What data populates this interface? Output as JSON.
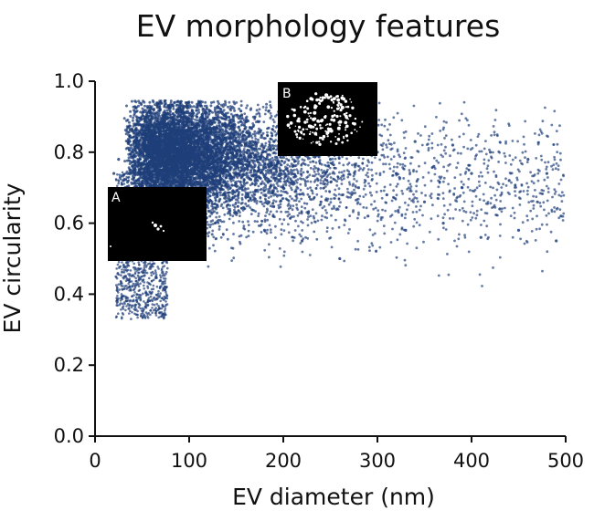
{
  "chart_data": {
    "type": "scatter",
    "title": "EV morphology features",
    "xlabel": "EV diameter (nm)",
    "ylabel": "EV circularity",
    "xlim": [
      0,
      500
    ],
    "ylim": [
      0.0,
      1.0
    ],
    "xticks": [
      "0",
      "100",
      "200",
      "300",
      "400",
      "500"
    ],
    "yticks": [
      "0.0",
      "0.2",
      "0.4",
      "0.6",
      "0.8",
      "1.0"
    ],
    "grid": false,
    "legend": "none",
    "point_color": "#1f3f7a",
    "series": [
      {
        "x": [
          20,
          25,
          30,
          35,
          40,
          45,
          50,
          55,
          60,
          65,
          70,
          75,
          80,
          85,
          90,
          95,
          100,
          110,
          120,
          130,
          140,
          150,
          160,
          170,
          180,
          190,
          200,
          210,
          220,
          230,
          240,
          250,
          260,
          270,
          280,
          290,
          300,
          310,
          320,
          330,
          340,
          350,
          360,
          370,
          380,
          390,
          400,
          410,
          420,
          430,
          440,
          450,
          460,
          470,
          480,
          490,
          495
        ],
        "y": [
          0.74,
          0.78,
          0.72,
          0.44,
          0.5,
          0.62,
          0.82,
          0.68,
          0.79,
          0.8,
          0.76,
          0.84,
          0.7,
          0.78,
          0.66,
          0.83,
          0.74,
          0.6,
          0.82,
          0.68,
          0.75,
          0.63,
          0.8,
          0.72,
          0.58,
          0.83,
          0.7,
          0.76,
          0.55,
          0.81,
          0.66,
          0.78,
          0.5,
          0.85,
          0.7,
          0.62,
          0.8,
          0.68,
          0.74,
          0.58,
          0.83,
          0.66,
          0.76,
          0.6,
          0.82,
          0.7,
          0.74,
          0.56,
          0.8,
          0.64,
          0.72,
          0.58,
          0.78,
          0.66,
          0.74,
          0.55,
          0.62
        ]
      }
    ],
    "insets": [
      {
        "label": "A",
        "description": "single EV image, small bright particle"
      },
      {
        "label": "B",
        "description": "single EV image, large scattered particle cluster"
      }
    ]
  }
}
